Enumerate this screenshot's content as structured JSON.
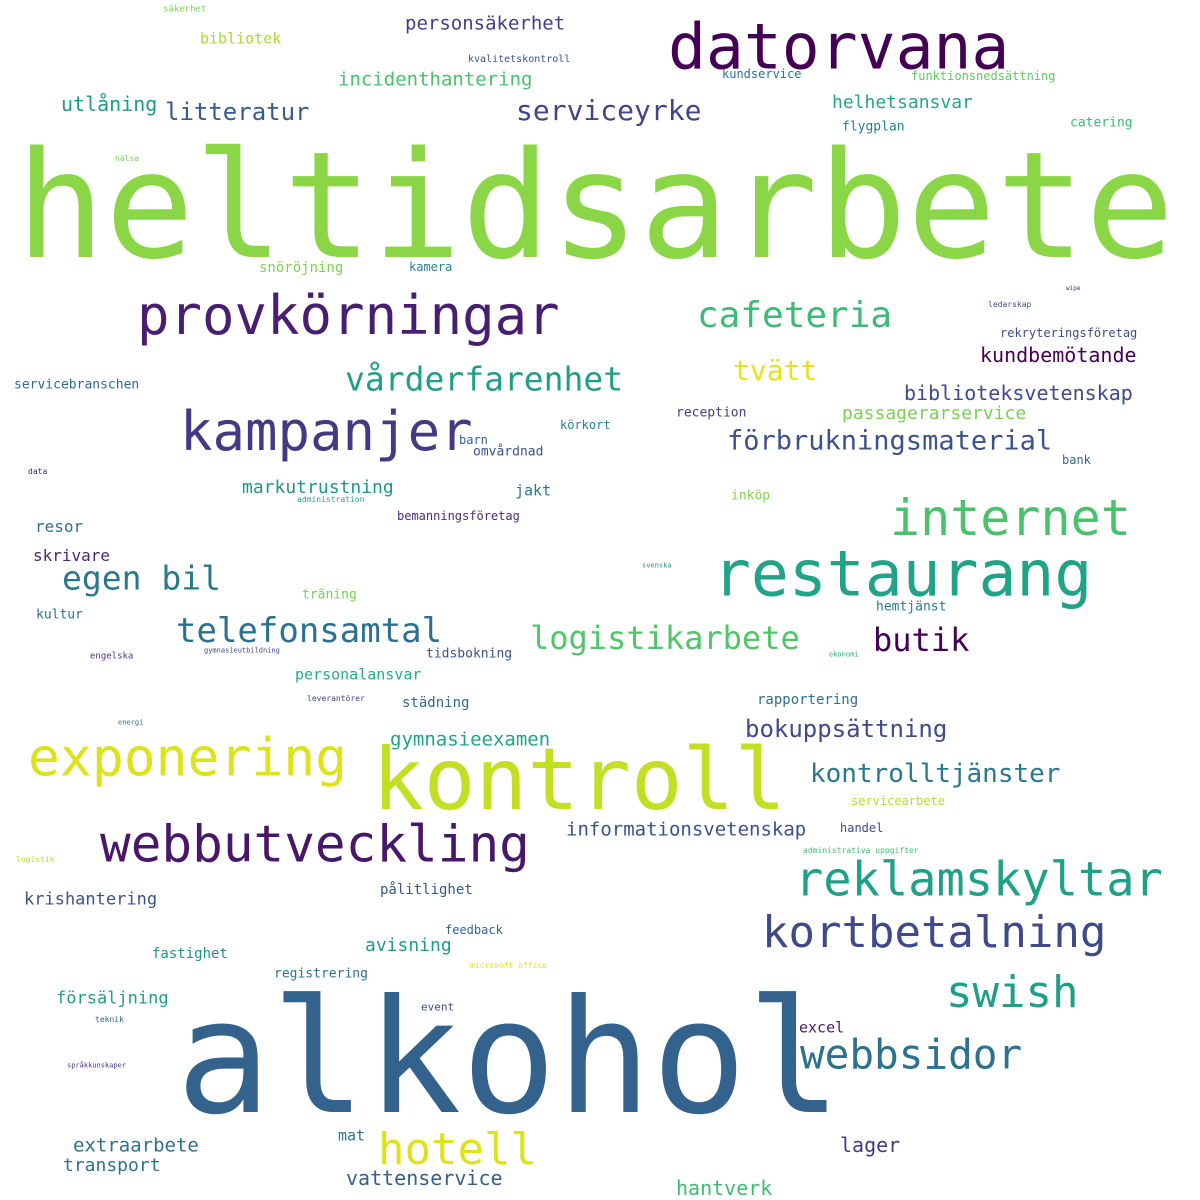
{
  "words": [
    {
      "text": "heltidsarbete",
      "color": "#8bd646"
    },
    {
      "text": "alkohol",
      "color": "#33638d"
    },
    {
      "text": "kontroll",
      "color": "#c2df23"
    },
    {
      "text": "datorvana",
      "color": "#440154"
    },
    {
      "text": "restaurang",
      "color": "#20a386"
    },
    {
      "text": "provkörningar",
      "color": "#481f70"
    },
    {
      "text": "kampanjer",
      "color": "#443983"
    },
    {
      "text": "webbutveckling",
      "color": "#481769"
    },
    {
      "text": "exponering",
      "color": "#dde318"
    },
    {
      "text": "internet",
      "color": "#4ac16d"
    },
    {
      "text": "reklamskyltar",
      "color": "#1fa088"
    },
    {
      "text": "kortbetalning",
      "color": "#3e4a89"
    },
    {
      "text": "hotell",
      "color": "#dde318"
    },
    {
      "text": "swish",
      "color": "#1f9e89"
    },
    {
      "text": "webbsidor",
      "color": "#2c728e"
    },
    {
      "text": "vårderfarenhet",
      "color": "#1f9f88"
    },
    {
      "text": "telefonsamtal",
      "color": "#2d708e"
    },
    {
      "text": "logistikarbete",
      "color": "#52c569"
    },
    {
      "text": "cafeteria",
      "color": "#3bbb75"
    },
    {
      "text": "egen bil",
      "color": "#2a788e"
    },
    {
      "text": "butik",
      "color": "#440154"
    },
    {
      "text": "serviceyrke",
      "color": "#414487"
    },
    {
      "text": "förbrukningsmaterial",
      "color": "#3b528b"
    },
    {
      "text": "kontrolltjänster",
      "color": "#2a788e"
    },
    {
      "text": "bokuppsättning",
      "color": "#3e4a89"
    },
    {
      "text": "kundbemötande",
      "color": "#440154"
    },
    {
      "text": "tvätt",
      "color": "#e5e419"
    },
    {
      "text": "litteratur",
      "color": "#365c8d"
    },
    {
      "text": "personsäkerhet",
      "color": "#433e85"
    },
    {
      "text": "biblioteksvetenskap",
      "color": "#3e4a89"
    },
    {
      "text": "informationsvetenskap",
      "color": "#3b528b"
    },
    {
      "text": "gymnasieexamen",
      "color": "#20a386"
    },
    {
      "text": "incidenthantering",
      "color": "#4ac16d"
    },
    {
      "text": "utlåning",
      "color": "#1e9c89"
    },
    {
      "text": "helhetsansvar",
      "color": "#22a785"
    },
    {
      "text": "markutrustning",
      "color": "#1f968b"
    },
    {
      "text": "passagerarservice",
      "color": "#7ad151"
    },
    {
      "text": "avisning",
      "color": "#1f9a8a"
    },
    {
      "text": "krishantering",
      "color": "#3b528b"
    },
    {
      "text": "extraarbete",
      "color": "#2d708e"
    },
    {
      "text": "transport",
      "color": "#2c728e"
    },
    {
      "text": "vattenservice",
      "color": "#355f8d"
    },
    {
      "text": "hantverk",
      "color": "#3dbc74"
    },
    {
      "text": "lager",
      "color": "#443a83"
    },
    {
      "text": "försäljning",
      "color": "#1fa187"
    },
    {
      "text": "bibliotek",
      "color": "#a8db34"
    },
    {
      "text": "skrivare",
      "color": "#482878"
    },
    {
      "text": "resor",
      "color": "#2d708e"
    },
    {
      "text": "personalansvar",
      "color": "#25ab82"
    },
    {
      "text": "städning",
      "color": "#31688e"
    },
    {
      "text": "rapportering",
      "color": "#2e6e8e"
    },
    {
      "text": "pålitlighet",
      "color": "#39568c"
    },
    {
      "text": "snöröjning",
      "color": "#7fd34e"
    },
    {
      "text": "kamera",
      "color": "#27808e"
    },
    {
      "text": "jakt",
      "color": "#2a788e"
    },
    {
      "text": "fastighet",
      "color": "#21918c"
    },
    {
      "text": "excel",
      "color": "#481b6d"
    },
    {
      "text": "mat",
      "color": "#2a768e"
    },
    {
      "text": "servicebranschen",
      "color": "#31688e"
    },
    {
      "text": "kundservice",
      "color": "#2c718e"
    },
    {
      "text": "flygplan",
      "color": "#26828e"
    },
    {
      "text": "catering",
      "color": "#3bbb75"
    },
    {
      "text": "funktionsnedsättning",
      "color": "#5ec962"
    },
    {
      "text": "reception",
      "color": "#424086"
    },
    {
      "text": "körkort",
      "color": "#27808e"
    },
    {
      "text": "barn",
      "color": "#355f8d"
    },
    {
      "text": "omvårdnad",
      "color": "#3b528b"
    },
    {
      "text": "bemanningsföretag",
      "color": "#472d7b"
    },
    {
      "text": "inköp",
      "color": "#7fd34e"
    },
    {
      "text": "rekryteringsföretag",
      "color": "#3e4a89"
    },
    {
      "text": "träning",
      "color": "#75d054"
    },
    {
      "text": "hemtjänst",
      "color": "#2a788e"
    },
    {
      "text": "kultur",
      "color": "#2c728e"
    },
    {
      "text": "tidsbokning",
      "color": "#3b528b"
    },
    {
      "text": "registrering",
      "color": "#2d708e"
    },
    {
      "text": "feedback",
      "color": "#31688e"
    },
    {
      "text": "handel",
      "color": "#3e4a89"
    },
    {
      "text": "servicearbete",
      "color": "#b5de2b"
    },
    {
      "text": "event",
      "color": "#3e4a89"
    },
    {
      "text": "bank",
      "color": "#31688e"
    },
    {
      "text": "kvalitetskontroll",
      "color": "#3b528b"
    },
    {
      "text": "säkerhet",
      "color": "#7ad151"
    },
    {
      "text": "hälsa",
      "color": "#7ad151"
    },
    {
      "text": "ledarskap",
      "color": "#3e4a89"
    },
    {
      "text": "wipe",
      "color": "#482878"
    },
    {
      "text": "data",
      "color": "#482475"
    },
    {
      "text": "administration",
      "color": "#22a785"
    },
    {
      "text": "svenska",
      "color": "#21918c"
    },
    {
      "text": "engelska",
      "color": "#46337e"
    },
    {
      "text": "gymnasieutbildning",
      "color": "#3e4a89"
    },
    {
      "text": "leverantörer",
      "color": "#414487"
    },
    {
      "text": "ekonomi",
      "color": "#2ab07f"
    },
    {
      "text": "energi",
      "color": "#2c728e"
    },
    {
      "text": "logistik",
      "color": "#b5de2b"
    },
    {
      "text": "administrativa uppgifter",
      "color": "#44bf70"
    },
    {
      "text": "microsoft office",
      "color": "#dde318"
    },
    {
      "text": "teknik",
      "color": "#33638d"
    },
    {
      "text": "språkkunskaper",
      "color": "#46337e"
    }
  ]
}
